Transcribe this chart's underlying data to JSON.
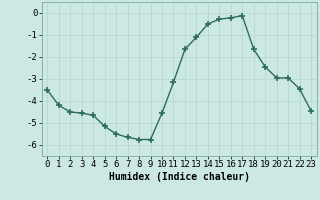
{
  "x": [
    0,
    1,
    2,
    3,
    4,
    5,
    6,
    7,
    8,
    9,
    10,
    11,
    12,
    13,
    14,
    15,
    16,
    17,
    18,
    19,
    20,
    21,
    22,
    23
  ],
  "y": [
    -3.5,
    -4.2,
    -4.5,
    -4.55,
    -4.65,
    -5.15,
    -5.5,
    -5.65,
    -5.75,
    -5.75,
    -4.55,
    -3.15,
    -1.65,
    -1.1,
    -0.5,
    -0.28,
    -0.22,
    -0.12,
    -1.65,
    -2.45,
    -2.95,
    -2.95,
    -3.45,
    -4.45
  ],
  "xlabel": "Humidex (Indice chaleur)",
  "xlim": [
    -0.5,
    23.5
  ],
  "ylim": [
    -6.5,
    0.5
  ],
  "yticks": [
    0,
    -1,
    -2,
    -3,
    -4,
    -5,
    -6
  ],
  "xticks": [
    0,
    1,
    2,
    3,
    4,
    5,
    6,
    7,
    8,
    9,
    10,
    11,
    12,
    13,
    14,
    15,
    16,
    17,
    18,
    19,
    20,
    21,
    22,
    23
  ],
  "line_color": "#2d6b5e",
  "marker": "+",
  "marker_size": 4,
  "marker_lw": 1.2,
  "line_width": 1.0,
  "background_color": "#cce8e4",
  "grid_color": "#b8d8d4",
  "xlabel_fontsize": 7,
  "tick_fontsize": 6.5
}
